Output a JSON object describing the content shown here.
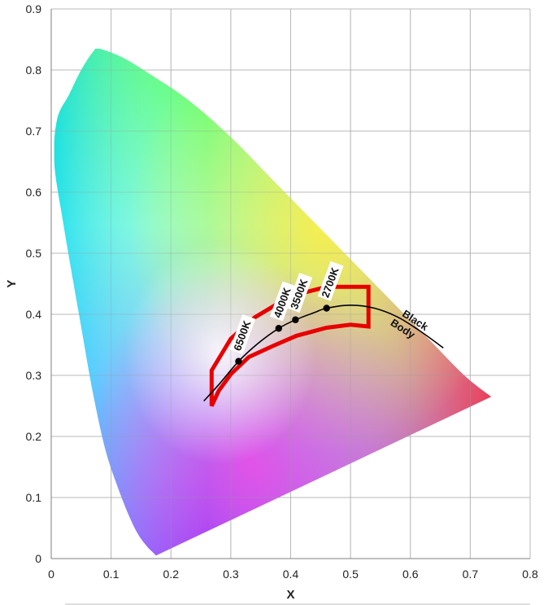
{
  "chart_data": {
    "type": "scatter",
    "title": "",
    "xlabel": "X",
    "ylabel": "Y",
    "xlim": [
      0,
      0.8
    ],
    "ylim": [
      0,
      0.9
    ],
    "x_ticks": [
      "0",
      "0.1",
      "0.2",
      "0.3",
      "0.4",
      "0.5",
      "0.6",
      "0.7",
      "0.8"
    ],
    "y_ticks": [
      "0",
      "0.1",
      "0.2",
      "0.3",
      "0.4",
      "0.5",
      "0.6",
      "0.7",
      "0.8",
      "0.9"
    ],
    "grid": true,
    "spectral_locus": [
      [
        0.175,
        0.005
      ],
      [
        0.17,
        0.01
      ],
      [
        0.16,
        0.02
      ],
      [
        0.145,
        0.04
      ],
      [
        0.13,
        0.07
      ],
      [
        0.11,
        0.12
      ],
      [
        0.09,
        0.18
      ],
      [
        0.07,
        0.27
      ],
      [
        0.05,
        0.38
      ],
      [
        0.02,
        0.55
      ],
      [
        0.005,
        0.65
      ],
      [
        0.01,
        0.72
      ],
      [
        0.03,
        0.76
      ],
      [
        0.05,
        0.8
      ],
      [
        0.07,
        0.83
      ],
      [
        0.08,
        0.835
      ],
      [
        0.12,
        0.82
      ],
      [
        0.17,
        0.79
      ],
      [
        0.23,
        0.75
      ],
      [
        0.3,
        0.69
      ],
      [
        0.37,
        0.62
      ],
      [
        0.44,
        0.55
      ],
      [
        0.5,
        0.49
      ],
      [
        0.56,
        0.43
      ],
      [
        0.63,
        0.36
      ],
      [
        0.69,
        0.3
      ],
      [
        0.735,
        0.265
      ]
    ],
    "black_body_curve": [
      [
        0.255,
        0.258
      ],
      [
        0.28,
        0.285
      ],
      [
        0.313,
        0.323
      ],
      [
        0.345,
        0.352
      ],
      [
        0.38,
        0.377
      ],
      [
        0.408,
        0.391
      ],
      [
        0.44,
        0.403
      ],
      [
        0.46,
        0.41
      ],
      [
        0.5,
        0.415
      ],
      [
        0.54,
        0.41
      ],
      [
        0.58,
        0.395
      ],
      [
        0.62,
        0.37
      ],
      [
        0.655,
        0.345
      ]
    ],
    "black_body_label": [
      "Black",
      "Body"
    ],
    "cct_points": [
      {
        "label": "6500K",
        "x": 0.313,
        "y": 0.323
      },
      {
        "label": "4000K",
        "x": 0.38,
        "y": 0.377
      },
      {
        "label": "3500K",
        "x": 0.408,
        "y": 0.391
      },
      {
        "label": "2700K",
        "x": 0.46,
        "y": 0.41
      }
    ],
    "region_outline": [
      [
        0.268,
        0.308
      ],
      [
        0.3,
        0.36
      ],
      [
        0.34,
        0.395
      ],
      [
        0.4,
        0.43
      ],
      [
        0.46,
        0.445
      ],
      [
        0.53,
        0.445
      ],
      [
        0.53,
        0.38
      ],
      [
        0.5,
        0.383
      ],
      [
        0.46,
        0.378
      ],
      [
        0.41,
        0.365
      ],
      [
        0.37,
        0.348
      ],
      [
        0.33,
        0.33
      ],
      [
        0.3,
        0.302
      ],
      [
        0.28,
        0.275
      ],
      [
        0.268,
        0.25
      ]
    ],
    "colors": {
      "region": "#e60000",
      "curve": "#000000",
      "grid": "#c8c8c8"
    }
  }
}
